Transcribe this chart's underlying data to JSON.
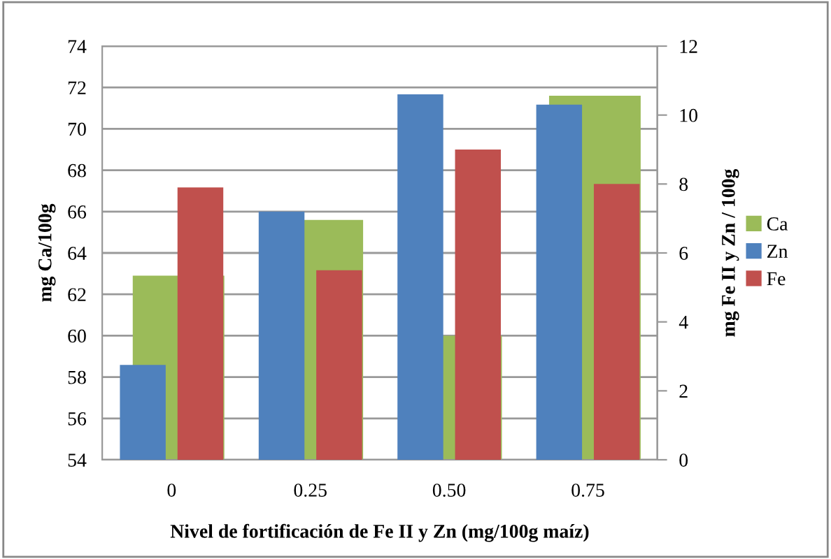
{
  "chart_data": {
    "type": "bar",
    "xlabel": "Nivel de fortificación de Fe II y Zn (mg/100g maíz)",
    "ylabel": "mg Ca/100g",
    "y2label": "mg Fe II y Zn / 100g",
    "categories": [
      "0",
      "0.25",
      "0.50",
      "0.75"
    ],
    "series": [
      {
        "name": "Ca",
        "color": "#9bbb59",
        "values": [
          62.9,
          65.6,
          60.0,
          71.6
        ]
      },
      {
        "name": "Zn",
        "color": "#4f81bd",
        "axis": "y2",
        "values": [
          2.75,
          7.2,
          10.6,
          10.3
        ]
      },
      {
        "name": "Fe",
        "color": "#c0504d",
        "axis": "y2",
        "values": [
          7.9,
          5.5,
          9.0,
          8.0
        ]
      }
    ],
    "ylim": [
      54,
      74
    ],
    "yticks": [
      54,
      56,
      58,
      60,
      62,
      64,
      66,
      68,
      70,
      72,
      74
    ],
    "y2lim": [
      0,
      12
    ],
    "y2ticks": [
      0,
      2,
      4,
      6,
      8,
      10,
      12
    ],
    "grid": "y",
    "legend": "right"
  }
}
